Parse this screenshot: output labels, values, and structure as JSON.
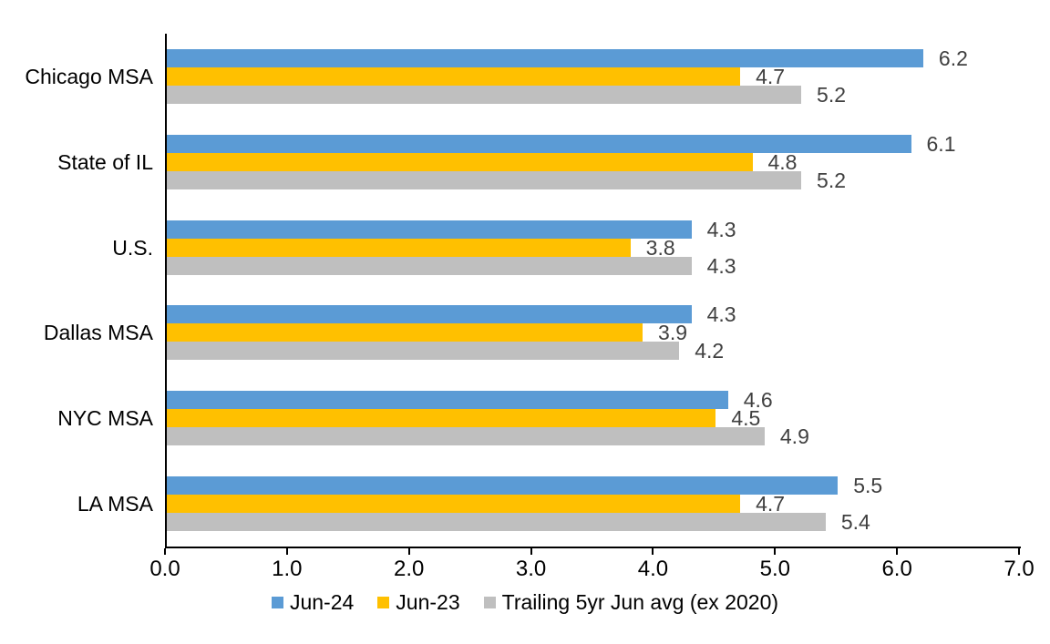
{
  "chart_data": {
    "type": "bar",
    "orientation": "horizontal",
    "title": "",
    "categories": [
      "Chicago MSA",
      "State of IL",
      "U.S.",
      "Dallas MSA",
      "NYC MSA",
      "LA MSA"
    ],
    "series": [
      {
        "name": "Jun-24",
        "color": "#5B9BD5",
        "values": [
          6.2,
          6.1,
          4.3,
          4.3,
          4.6,
          5.5
        ]
      },
      {
        "name": "Jun-23",
        "color": "#FFC000",
        "values": [
          4.7,
          4.8,
          3.8,
          3.9,
          4.5,
          4.7
        ]
      },
      {
        "name": "Trailing 5yr Jun avg (ex 2020)",
        "color": "#BFBFBF",
        "values": [
          5.2,
          5.2,
          4.3,
          4.2,
          4.9,
          5.4
        ]
      }
    ],
    "xlim": [
      0,
      7
    ],
    "xtick_labels": [
      "0.0",
      "1.0",
      "2.0",
      "3.0",
      "4.0",
      "5.0",
      "6.0",
      "7.0"
    ],
    "grid": false,
    "value_labels": true,
    "value_label_color": "#404040",
    "axis_color": "#000000",
    "legend_position": "bottom"
  }
}
